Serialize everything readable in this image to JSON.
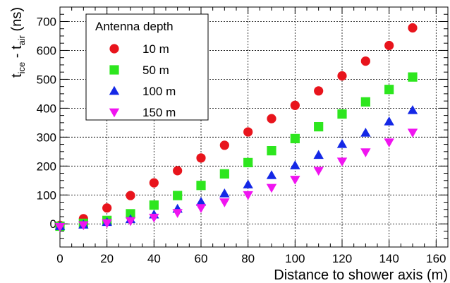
{
  "chart_data": {
    "type": "scatter",
    "xlabel": "Distance to shower axis (m)",
    "ylabel_parts": [
      "t",
      "ice",
      " - t",
      "air",
      " (ns)"
    ],
    "xlim": [
      0,
      165
    ],
    "ylim": [
      -80,
      750
    ],
    "grid": true,
    "x_ticks": [
      "0",
      "20",
      "40",
      "60",
      "80",
      "100",
      "120",
      "140",
      "160"
    ],
    "y_ticks": [
      "0",
      "100",
      "200",
      "300",
      "400",
      "500",
      "600",
      "700"
    ],
    "legend": {
      "title": "Antenna depth",
      "placement": "top-left"
    },
    "series": [
      {
        "name": "10 m",
        "color": "#e8141c",
        "marker": "circle",
        "x": [
          0,
          10,
          20,
          30,
          40,
          50,
          60,
          70,
          80,
          90,
          100,
          110,
          120,
          130,
          140,
          150
        ],
        "y": [
          -5,
          18,
          55,
          98,
          142,
          184,
          228,
          272,
          318,
          364,
          410,
          460,
          512,
          563,
          617,
          678
        ]
      },
      {
        "name": "50 m",
        "color": "#2de61e",
        "marker": "square",
        "x": [
          0,
          10,
          20,
          30,
          40,
          50,
          60,
          70,
          80,
          90,
          100,
          110,
          120,
          130,
          140,
          150
        ],
        "y": [
          -8,
          2,
          12,
          35,
          65,
          98,
          133,
          173,
          212,
          253,
          295,
          336,
          380,
          422,
          465,
          508
        ]
      },
      {
        "name": "100 m",
        "color": "#1428e6",
        "marker": "triangle-up",
        "x": [
          0,
          10,
          20,
          30,
          40,
          50,
          60,
          70,
          80,
          90,
          100,
          110,
          120,
          130,
          140,
          150
        ],
        "y": [
          -8,
          -3,
          6,
          16,
          32,
          52,
          76,
          105,
          136,
          168,
          202,
          238,
          276,
          315,
          354,
          393
        ]
      },
      {
        "name": "150 m",
        "color": "#f014f0",
        "marker": "triangle-down",
        "x": [
          0,
          10,
          20,
          30,
          40,
          50,
          60,
          70,
          80,
          90,
          100,
          110,
          120,
          130,
          140,
          150
        ],
        "y": [
          -10,
          -4,
          3,
          10,
          22,
          38,
          55,
          75,
          100,
          125,
          153,
          184,
          216,
          248,
          282,
          316
        ]
      }
    ]
  }
}
